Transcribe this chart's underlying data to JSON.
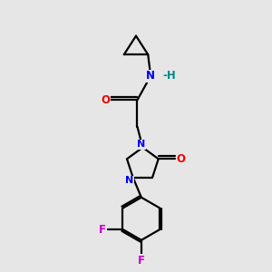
{
  "bg_color": "#e6e6e6",
  "bond_color": "#000000",
  "atom_colors": {
    "N": "#0000ee",
    "O": "#ee0000",
    "F": "#cc00cc",
    "H": "#008888",
    "C": "#000000"
  },
  "lw": 1.6
}
